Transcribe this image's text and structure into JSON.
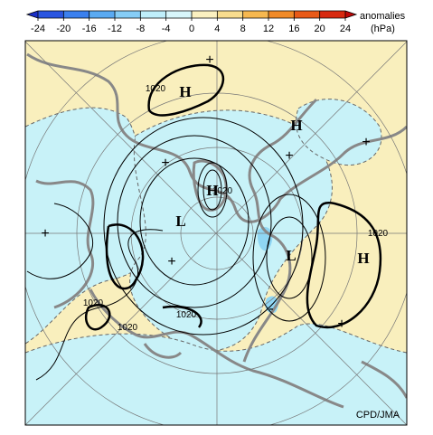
{
  "colorbar": {
    "ticks": [
      -24,
      -20,
      -16,
      -12,
      -8,
      -4,
      0,
      4,
      8,
      12,
      16,
      20,
      24
    ],
    "colors": [
      "#1a2fc8",
      "#2a55e0",
      "#3b80ee",
      "#5aaaf2",
      "#86cdf6",
      "#bfeefa",
      "#d8f6fb",
      "#fbf0c0",
      "#f8dc8e",
      "#f6b850",
      "#f08a28",
      "#e85a18",
      "#d82a10",
      "#c00808"
    ],
    "label": "anomalies",
    "unit": "(hPa)"
  },
  "map": {
    "labels": [
      "H",
      "1020",
      "H",
      "H",
      "1020",
      "L",
      "L",
      "H",
      "1020",
      "1020",
      "1020",
      "1020",
      "+",
      "+",
      "+",
      "+",
      "+",
      "+",
      "+",
      "-"
    ],
    "credit": "CPD/JMA"
  }
}
